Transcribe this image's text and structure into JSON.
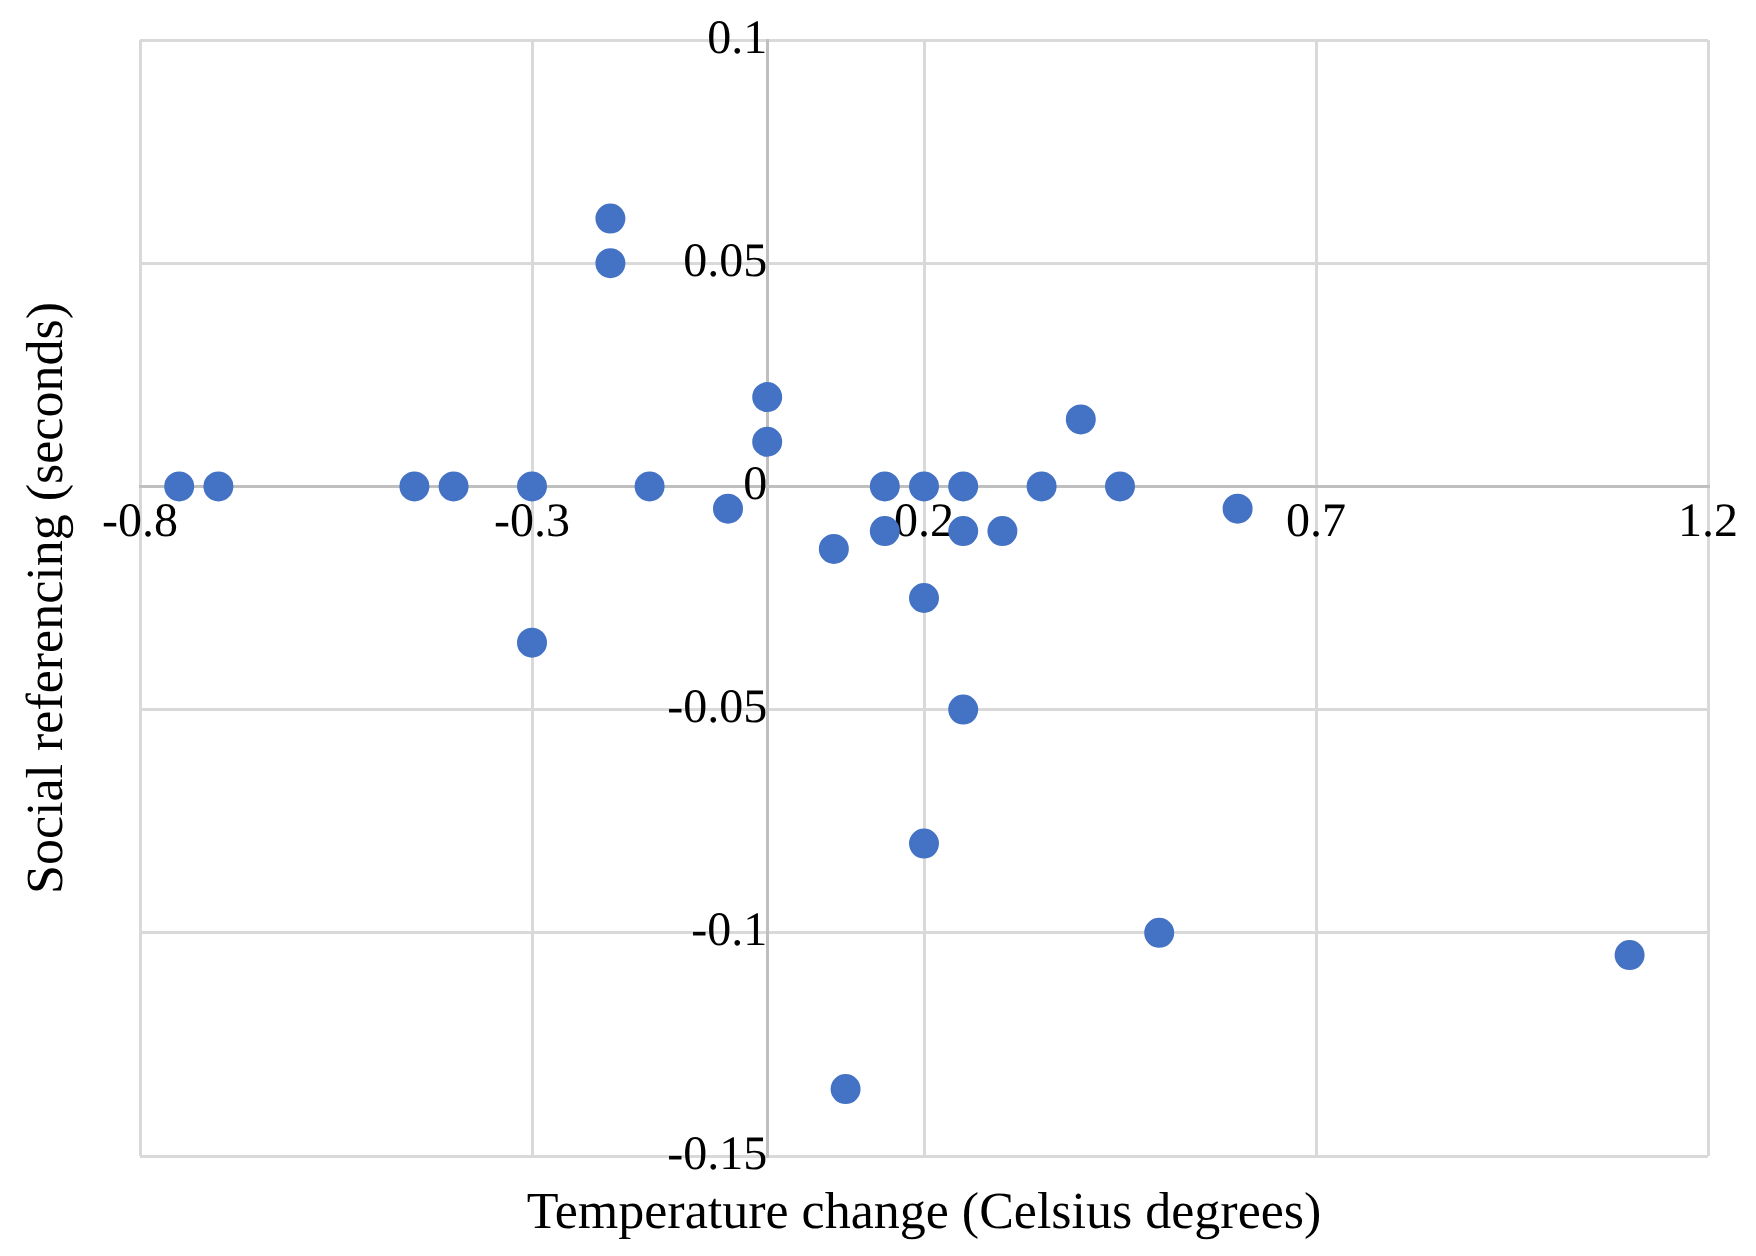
{
  "chart_data": {
    "type": "scatter",
    "xlabel": "Temperature change (Celsius degrees)",
    "ylabel": "Social referencing (seconds)",
    "x": [
      -0.75,
      -0.7,
      -0.45,
      -0.4,
      -0.3,
      -0.15,
      -0.2,
      -0.2,
      -0.05,
      0,
      0,
      -0.3,
      0.085,
      0.1,
      0.15,
      0.15,
      0.2,
      0.2,
      0.2,
      0.25,
      0.25,
      0.25,
      0.3,
      0.35,
      0.4,
      0.45,
      0.5,
      0.6,
      1.1
    ],
    "values": [
      0,
      0,
      0,
      0,
      0,
      0,
      0.06,
      0.05,
      -0.005,
      0.02,
      0.01,
      -0.035,
      -0.014,
      -0.135,
      0,
      -0.01,
      0,
      -0.025,
      -0.08,
      0,
      -0.01,
      -0.05,
      -0.01,
      0,
      0.015,
      0,
      -0.1,
      -0.005,
      -0.105
    ],
    "color": "#4472c4",
    "marker": "circle",
    "grid": true,
    "legend": false,
    "xlim": [
      -0.8,
      1.2
    ],
    "xticks": [
      -0.8,
      -0.3,
      0.2,
      0.7,
      1.2
    ],
    "ylim": [
      -0.15,
      0.1
    ],
    "yticks": [
      -0.15,
      -0.1,
      -0.05,
      0,
      0.05,
      0.1
    ]
  }
}
